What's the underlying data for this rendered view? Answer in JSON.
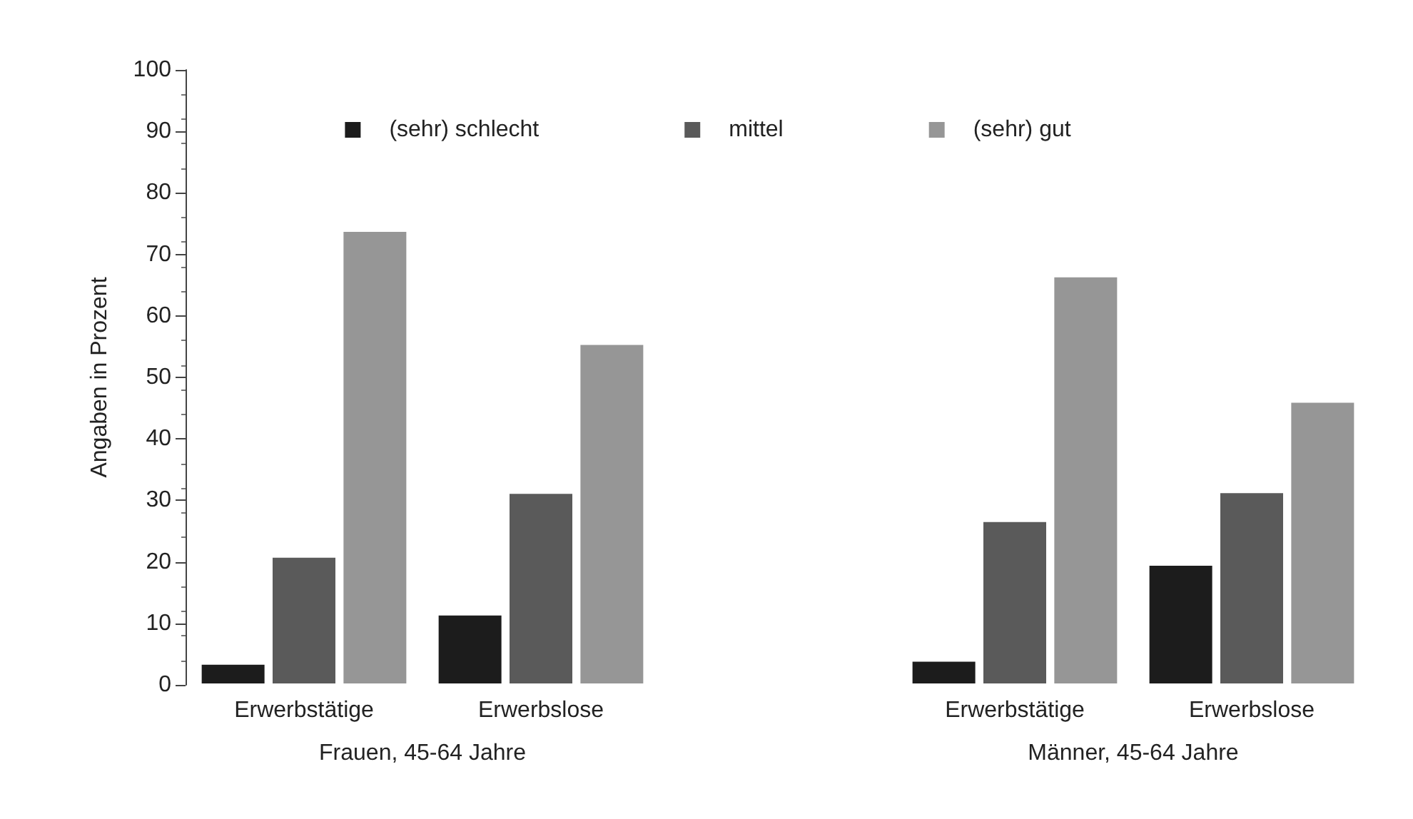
{
  "chart_data": {
    "type": "bar",
    "categories": [
      "Erwerbstätige",
      "Erwerbslose",
      null,
      "Erwerbstätige",
      "Erwerbslose"
    ],
    "series": [
      {
        "name": "(sehr) schlecht",
        "color": "#1c1c1c",
        "values": [
          3.5,
          11.5,
          null,
          4,
          19.6
        ]
      },
      {
        "name": "mittel",
        "color": "#5a5a5a",
        "values": [
          20.9,
          31.3,
          null,
          26.7,
          31.4
        ]
      },
      {
        "name": "(sehr) gut",
        "color": "#969696",
        "values": [
          73.9,
          55.5,
          null,
          66.5,
          46.1
        ]
      }
    ],
    "ylabel": "Angaben in Prozent",
    "ylim": [
      0,
      100
    ],
    "yticks": [
      0,
      10,
      20,
      30,
      40,
      50,
      60,
      70,
      80,
      90,
      100
    ],
    "annotations": [
      "Frauen, 45-64 Jahre",
      "Männer, 45-64 Jahre"
    ],
    "legend": "top",
    "grid": false
  }
}
